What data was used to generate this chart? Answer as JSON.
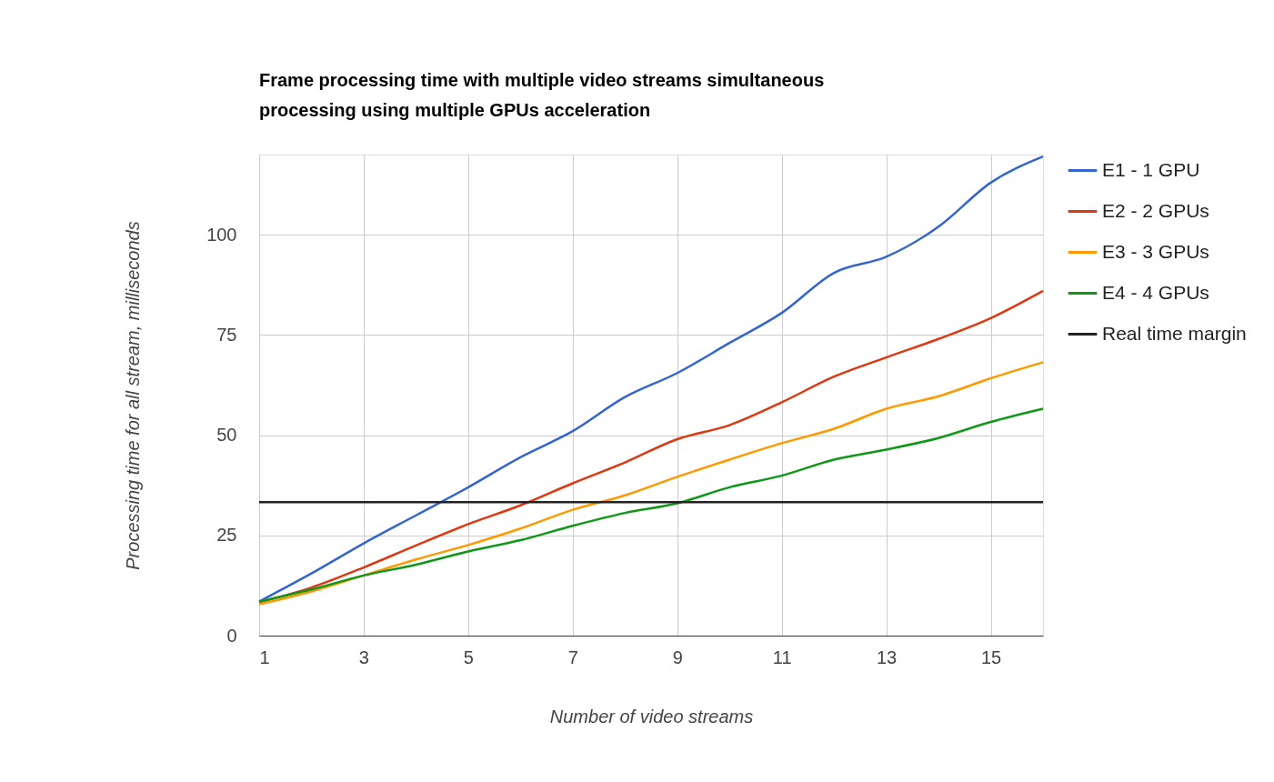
{
  "chart_data": {
    "type": "line",
    "title": "Frame processing time with multiple video streams simultaneous processing using multiple GPUs acceleration",
    "xlabel": "Number of video streams",
    "ylabel": "Processing time for all stream, milliseconds",
    "x": [
      1,
      2,
      3,
      4,
      5,
      6,
      7,
      8,
      9,
      10,
      11,
      12,
      13,
      14,
      15,
      16
    ],
    "series": [
      {
        "name": "E1 - 1 GPU",
        "color": "#3366cc",
        "values": [
          8.5,
          15.5,
          23,
          30,
          37,
          44.5,
          51,
          59.5,
          65.5,
          73,
          80.5,
          90.5,
          94.5,
          102,
          113,
          119.5
        ]
      },
      {
        "name": "E2 - 2 GPUs",
        "color": "#dc3912",
        "values": [
          8.3,
          12,
          17,
          22.5,
          27.8,
          32.5,
          38,
          43.2,
          49,
          52.5,
          58.2,
          64.6,
          69.4,
          74,
          79.2,
          86
        ]
      },
      {
        "name": "E3 - 3 GPUs",
        "color": "#ff9900",
        "values": [
          7.8,
          11,
          15,
          19,
          22.6,
          26.7,
          31.4,
          35,
          39.6,
          43.9,
          48,
          51.6,
          56.6,
          59.7,
          64.2,
          68.2
        ]
      },
      {
        "name": "E4 - 4 GPUs",
        "color": "#109618",
        "values": [
          8.5,
          11.5,
          15,
          17.7,
          21,
          23.8,
          27.4,
          30.6,
          33,
          37,
          39.9,
          43.9,
          46.4,
          49.3,
          53.3,
          56.6
        ]
      },
      {
        "name": "Real time margin",
        "color": "#222222",
        "values": [
          33.3,
          33.3,
          33.3,
          33.3,
          33.3,
          33.3,
          33.3,
          33.3,
          33.3,
          33.3,
          33.3,
          33.3,
          33.3,
          33.3,
          33.3,
          33.3
        ]
      }
    ],
    "xlim": [
      1,
      16
    ],
    "xticks": [
      1,
      3,
      5,
      7,
      9,
      11,
      13,
      15
    ],
    "ylim": [
      0,
      120
    ],
    "yticks": [
      0,
      25,
      50,
      75,
      100
    ],
    "grid": true,
    "legend": "right",
    "line_style": "solid"
  }
}
